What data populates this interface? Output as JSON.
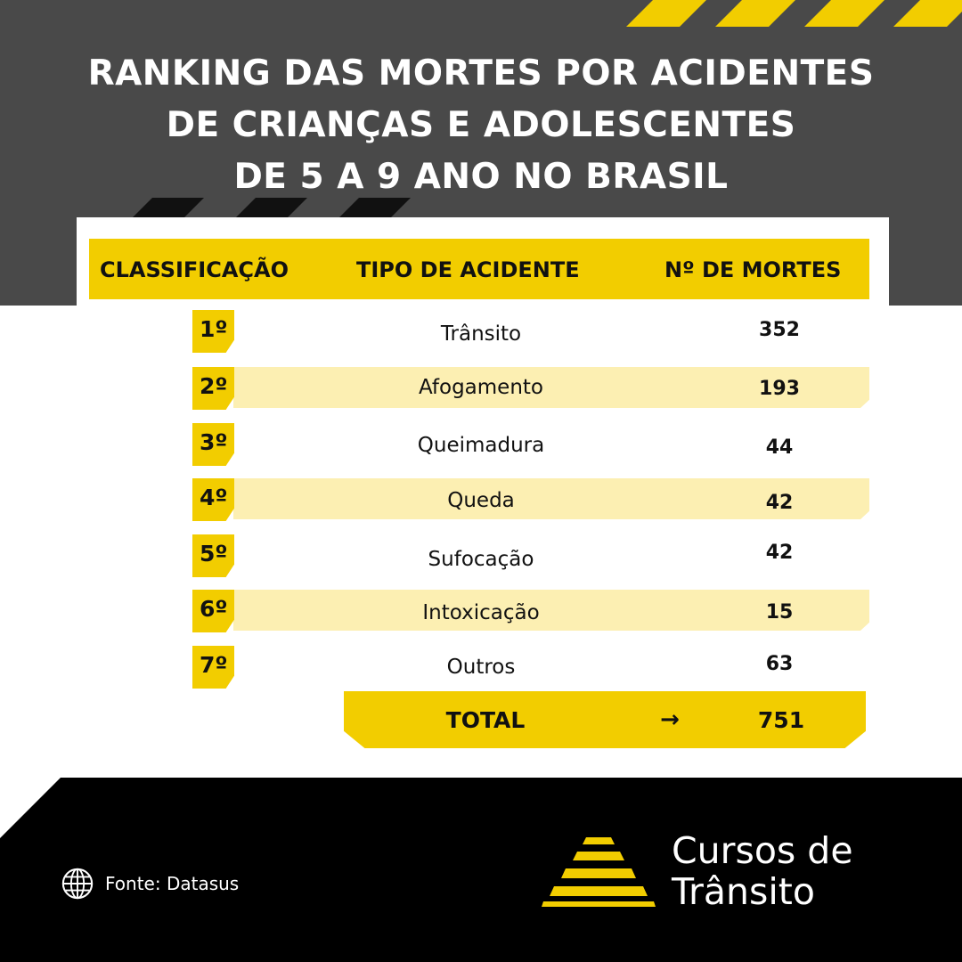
{
  "title_lines": [
    "RANKING DAS MORTES POR ACIDENTES",
    "DE CRIANÇAS E ADOLESCENTES",
    "DE 5 A 9 ANO NO BRASIL"
  ],
  "table": {
    "headers": {
      "rank": "CLASSIFICAÇÃO",
      "type": "TIPO DE ACIDENTE",
      "count": "Nº DE MORTES"
    },
    "rows": [
      {
        "rank": "1º",
        "type": "Trânsito",
        "count": "352"
      },
      {
        "rank": "2º",
        "type": "Afogamento",
        "count": "193"
      },
      {
        "rank": "3º",
        "type": "Queimadura",
        "count": "44"
      },
      {
        "rank": "4º",
        "type": "Queda",
        "count": "42"
      },
      {
        "rank": "5º",
        "type": "Sufocação",
        "count": "42"
      },
      {
        "rank": "6º",
        "type": "Intoxicação",
        "count": "15"
      },
      {
        "rank": "7º",
        "type": "Outros",
        "count": "63"
      }
    ],
    "total": {
      "label": "TOTAL",
      "arrow": "→",
      "value": "751"
    }
  },
  "footer": {
    "source": "Fonte: Datasus",
    "source_icon": "globe-icon",
    "brand_lines": [
      "Cursos de",
      "Trânsito"
    ]
  },
  "colors": {
    "accent_yellow": "#f2cd00",
    "row_highlight": "#fcefb2",
    "dark_band": "#494949",
    "footer_bg": "#000000"
  }
}
